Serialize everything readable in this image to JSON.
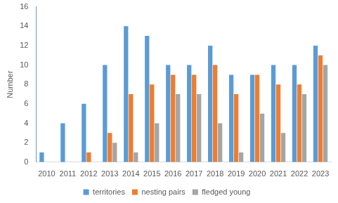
{
  "chart_data": {
    "type": "bar",
    "y_label": "Number",
    "categories": [
      "2010",
      "2011",
      "2012",
      "2013",
      "2014",
      "2015",
      "2016",
      "2017",
      "2018",
      "2019",
      "2020",
      "2021",
      "2022",
      "2023"
    ],
    "series": [
      {
        "name": "territories",
        "color": "#5b9bd5",
        "values": [
          1,
          4,
          6,
          10,
          14,
          13,
          10,
          10,
          12,
          9,
          9,
          10,
          10,
          12
        ]
      },
      {
        "name": "nesting pairs",
        "color": "#ed7d31",
        "values": [
          0,
          0,
          1,
          3,
          7,
          8,
          9,
          9,
          10,
          7,
          9,
          8,
          8,
          11
        ]
      },
      {
        "name": "fledged young",
        "color": "#a5a5a5",
        "values": [
          0,
          0,
          0,
          2,
          1,
          4,
          7,
          7,
          4,
          1,
          5,
          3,
          7,
          10
        ]
      }
    ],
    "ylim": [
      0,
      16
    ],
    "yticks": [
      0,
      2,
      4,
      6,
      8,
      10,
      12,
      14,
      16
    ],
    "grid": false,
    "legend": "bottom"
  }
}
